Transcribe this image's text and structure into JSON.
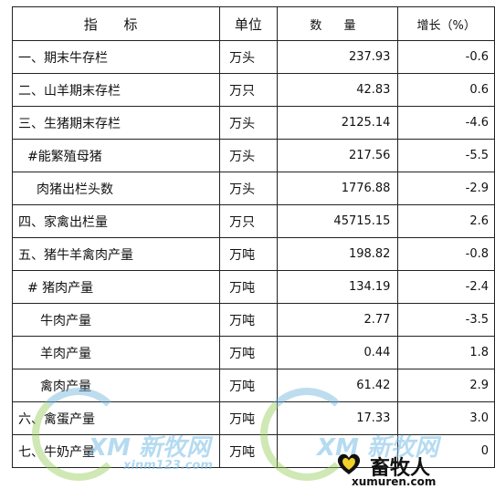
{
  "table": {
    "headers": [
      "指 标",
      "单位",
      "数 量",
      "增长（%）"
    ],
    "rows": [
      {
        "indicator": "一、期末牛存栏",
        "unit": "万头",
        "quantity": "237.93",
        "growth": "-0.6"
      },
      {
        "indicator": "二、山羊期末存栏",
        "unit": "万只",
        "quantity": "42.83",
        "growth": "0.6"
      },
      {
        "indicator": "三、生猪期末存栏",
        "unit": "万头",
        "quantity": "2125.14",
        "growth": "-4.6"
      },
      {
        "indicator": "#能繁殖母猪",
        "unit": "万头",
        "quantity": "217.56",
        "growth": "-5.5"
      },
      {
        "indicator": "肉猪出栏头数",
        "unit": "万头",
        "quantity": "1776.88",
        "growth": "-2.9"
      },
      {
        "indicator": "四、家禽出栏量",
        "unit": "万只",
        "quantity": "45715.15",
        "growth": "2.6"
      },
      {
        "indicator": "五、猪牛羊禽肉产量",
        "unit": "万吨",
        "quantity": "198.82",
        "growth": "-0.8"
      },
      {
        "indicator": "#  猪肉产量",
        "unit": "万吨",
        "quantity": "134.19",
        "growth": "-2.4"
      },
      {
        "indicator": "牛肉产量",
        "unit": "万吨",
        "quantity": "2.77",
        "growth": "-3.5"
      },
      {
        "indicator": "羊肉产量",
        "unit": "万吨",
        "quantity": "0.44",
        "growth": "1.8"
      },
      {
        "indicator": "禽肉产量",
        "unit": "万吨",
        "quantity": "61.42",
        "growth": "2.9"
      },
      {
        "indicator": "六、禽蛋产量",
        "unit": "万吨",
        "quantity": "17.33",
        "growth": "3.0"
      },
      {
        "indicator": "七、牛奶产量",
        "unit": "万吨",
        "quantity": "",
        "growth": "0"
      }
    ]
  },
  "watermarks": {
    "left_logo": "XM 新牧网",
    "left_url": "xinm123.com",
    "right_logo": "XM 新牧网",
    "brand_name": "畜牧人",
    "brand_url": "xumuren.com"
  }
}
